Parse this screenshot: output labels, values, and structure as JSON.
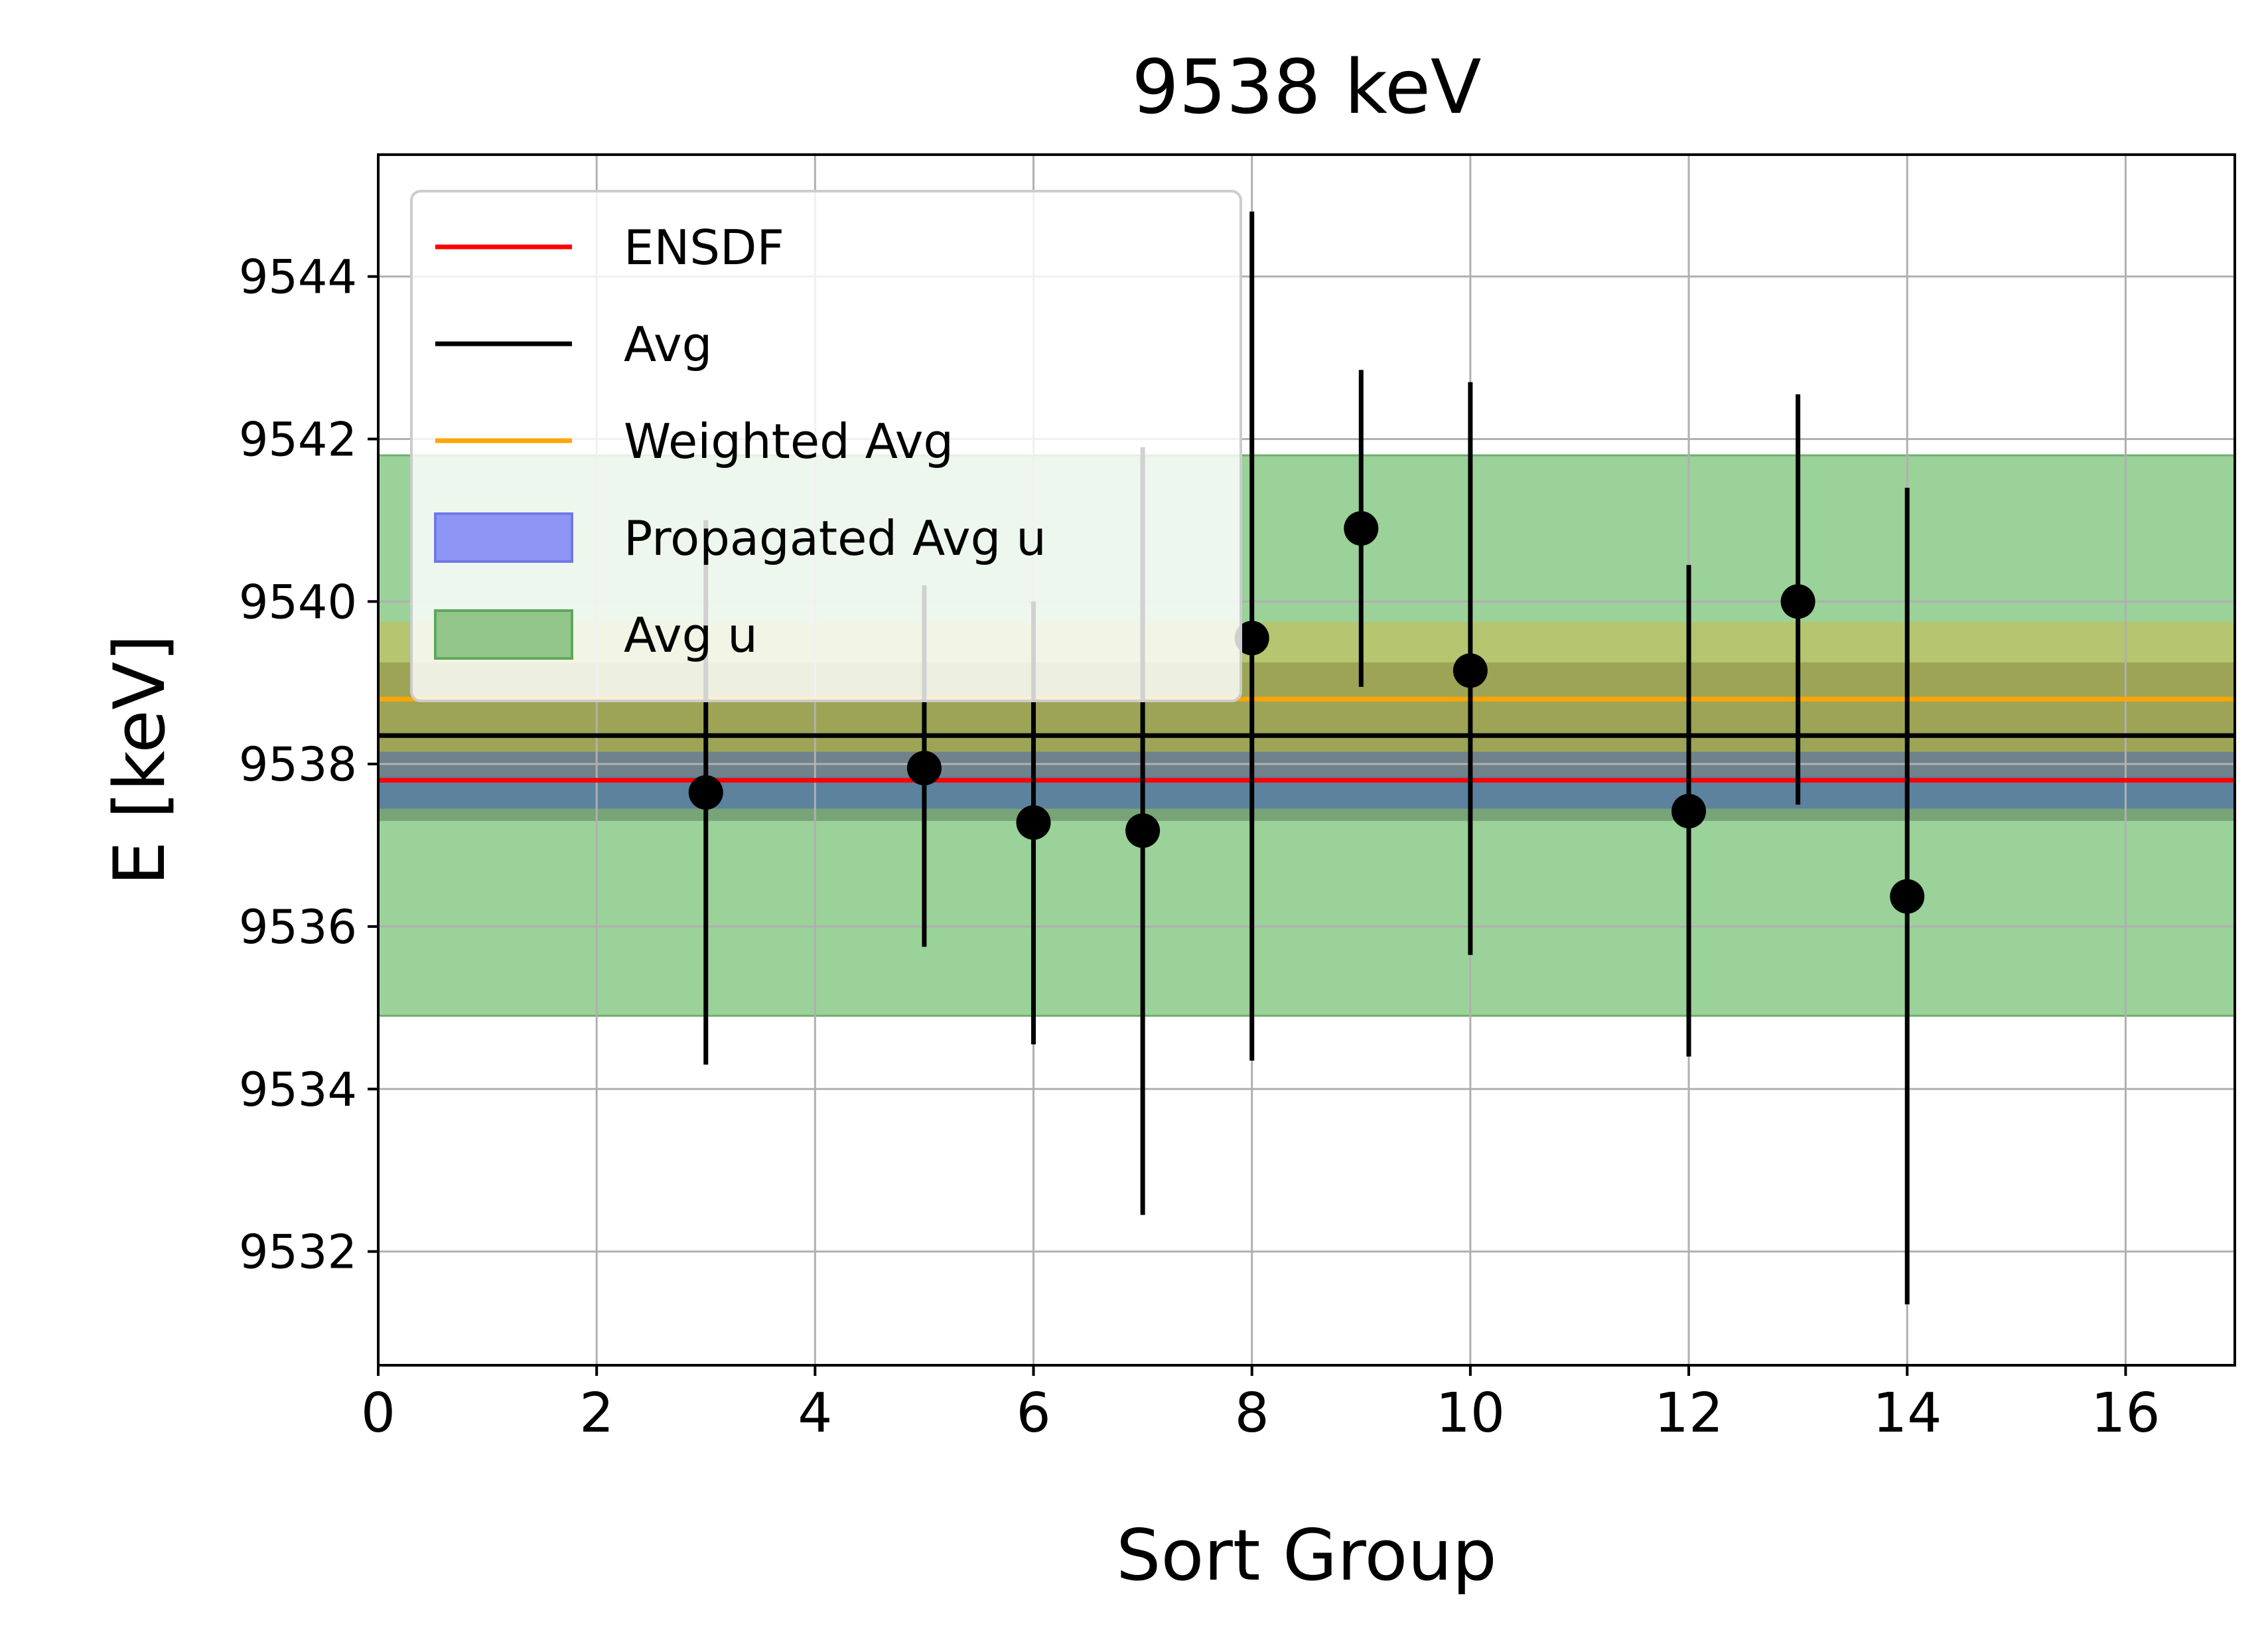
{
  "chart_data": {
    "type": "scatter",
    "title": "9538 keV",
    "xlabel": "Sort Group",
    "ylabel": "E [keV]",
    "xlim": [
      0,
      17
    ],
    "ylim": [
      9530.6,
      9545.5
    ],
    "xticks": [
      0,
      2,
      4,
      6,
      8,
      10,
      12,
      14,
      16
    ],
    "yticks": [
      9532,
      9534,
      9536,
      9538,
      9540,
      9542,
      9544
    ],
    "grid": true,
    "legend_position": "upper-left",
    "points": [
      {
        "x": 3,
        "y": 9537.65,
        "yerr_low": 9534.3,
        "yerr_high": 9541.0
      },
      {
        "x": 5,
        "y": 9537.95,
        "yerr_low": 9535.75,
        "yerr_high": 9540.2
      },
      {
        "x": 6,
        "y": 9537.28,
        "yerr_low": 9534.55,
        "yerr_high": 9540.0
      },
      {
        "x": 7,
        "y": 9537.18,
        "yerr_low": 9532.45,
        "yerr_high": 9541.9
      },
      {
        "x": 8,
        "y": 9539.55,
        "yerr_low": 9534.35,
        "yerr_high": 9544.8
      },
      {
        "x": 9,
        "y": 9540.9,
        "yerr_low": 9538.95,
        "yerr_high": 9542.85
      },
      {
        "x": 10,
        "y": 9539.15,
        "yerr_low": 9535.65,
        "yerr_high": 9542.7
      },
      {
        "x": 12,
        "y": 9537.42,
        "yerr_low": 9534.4,
        "yerr_high": 9540.45
      },
      {
        "x": 13,
        "y": 9540.0,
        "yerr_low": 9537.5,
        "yerr_high": 9542.55
      },
      {
        "x": 14,
        "y": 9536.37,
        "yerr_low": 9531.35,
        "yerr_high": 9541.4
      }
    ],
    "lines": [
      {
        "name": "ENSDF",
        "y": 9537.8,
        "color": "#ff0000"
      },
      {
        "name": "Avg",
        "y": 9538.35,
        "color": "#000000"
      },
      {
        "name": "Weighted Avg",
        "y": 9538.8,
        "color": "#ffa500"
      }
    ],
    "bands": [
      {
        "name": "Avg u",
        "y_low": 9534.9,
        "y_high": 9541.8,
        "color": "#2ca02c",
        "opacity": 0.48
      },
      {
        "name": "",
        "y_low": 9537.3,
        "y_high": 9539.25,
        "color": "#000000",
        "opacity": 0.22
      },
      {
        "name": "",
        "y_low": 9537.85,
        "y_high": 9539.75,
        "color": "#ffa500",
        "opacity": 0.28
      },
      {
        "name": "Propagated Avg u",
        "y_low": 9537.45,
        "y_high": 9538.15,
        "color": "#3a58cc",
        "opacity": 0.45
      }
    ],
    "legend": [
      {
        "label": "ENSDF",
        "kind": "line",
        "color": "#ff0000"
      },
      {
        "label": "Avg",
        "kind": "line",
        "color": "#000000"
      },
      {
        "label": "Weighted Avg",
        "kind": "line",
        "color": "#ffa500"
      },
      {
        "label": "Propagated Avg u",
        "kind": "patch",
        "color": "#8f95f4",
        "edge": "#6f7ae8"
      },
      {
        "label": "Avg u",
        "kind": "patch",
        "color": "#91c589",
        "edge": "#5ea85a"
      }
    ]
  }
}
